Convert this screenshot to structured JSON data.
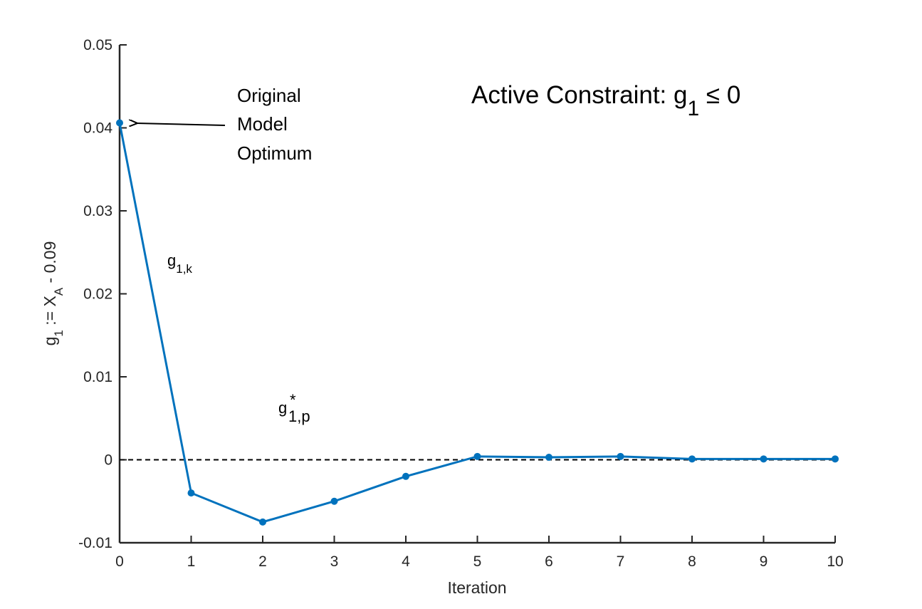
{
  "chart_data": {
    "type": "line",
    "xlabel": "Iteration",
    "ylabel": {
      "main": "g",
      "sub1": "1",
      "mid": " := X",
      "sub2": "A",
      "tail": " - 0.09"
    },
    "xlim": [
      0,
      10
    ],
    "ylim": [
      -0.01,
      0.05
    ],
    "xticks": [
      0,
      1,
      2,
      3,
      4,
      5,
      6,
      7,
      8,
      9,
      10
    ],
    "xtick_labels": [
      "0",
      "1",
      "2",
      "3",
      "4",
      "5",
      "6",
      "7",
      "8",
      "9",
      "10"
    ],
    "yticks": [
      -0.01,
      0,
      0.01,
      0.02,
      0.03,
      0.04,
      0.05
    ],
    "ytick_labels": [
      "-0.01",
      "0",
      "0.01",
      "0.02",
      "0.03",
      "0.04",
      "0.05"
    ],
    "grid": false,
    "series": [
      {
        "label": {
          "base": "g",
          "sub": "1,k"
        },
        "color": "#0072BD",
        "x": [
          0,
          1,
          2,
          3,
          4,
          5,
          6,
          7,
          8,
          9,
          10
        ],
        "y": [
          0.0406,
          -0.004,
          -0.0075,
          -0.005,
          -0.002,
          0.0004,
          0.0003,
          0.0004,
          0.0001,
          0.0001,
          0.0001
        ]
      }
    ],
    "reference_line": {
      "y": 0,
      "style": "dashed",
      "color": "#000000",
      "label": {
        "base": "g",
        "sup": "*",
        "sub": "1,p"
      }
    },
    "annotations": {
      "optimum_lines": [
        "Original",
        "Model",
        "Optimum"
      ],
      "arrow_target": {
        "x": 0,
        "y": 0.0406
      },
      "title": {
        "prefix": "Active Constraint: g",
        "sub": "1",
        "suffix": " ≤ 0"
      }
    }
  }
}
